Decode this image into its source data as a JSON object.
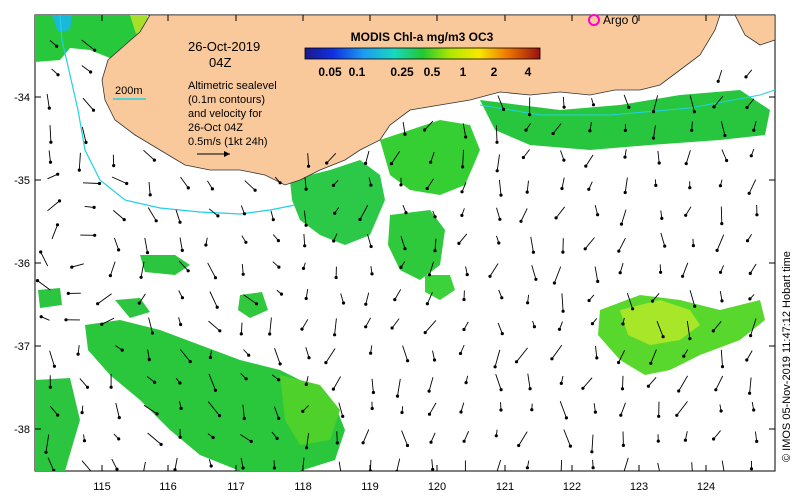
{
  "legend": {
    "title": "MODIS Chl-a mg/m3 OC3",
    "tick_labels": [
      "0.05",
      "0.1",
      "0.25",
      "0.5",
      "1",
      "2",
      "4"
    ]
  },
  "annotation": {
    "date": "26-Oct-2019",
    "time": "04Z",
    "description_lines": [
      "Altimetric sealevel",
      "(0.1m contours)",
      "and velocity for",
      "26-Oct 04Z",
      "0.5m/s (1kt 24h)"
    ]
  },
  "isobath_label": "200m",
  "argo_label": "Argo 0",
  "credit": "© IMOS 05-Nov-2019 11:47:12 Hobart time",
  "axes": {
    "y_ticks": [
      "-34",
      "-35",
      "-36",
      "-37",
      "-38"
    ],
    "x_ticks": [
      "115",
      "116",
      "117",
      "118",
      "119",
      "120",
      "121",
      "122",
      "123",
      "124"
    ]
  },
  "colors": {
    "land": "#f9c99c",
    "isobath": "#21d0e6",
    "chl_low": "#00c040",
    "chl_mid": "#2ed12a",
    "chl_high": "#a8e600",
    "arrow": "#000000",
    "argo": "#ff00c8"
  }
}
